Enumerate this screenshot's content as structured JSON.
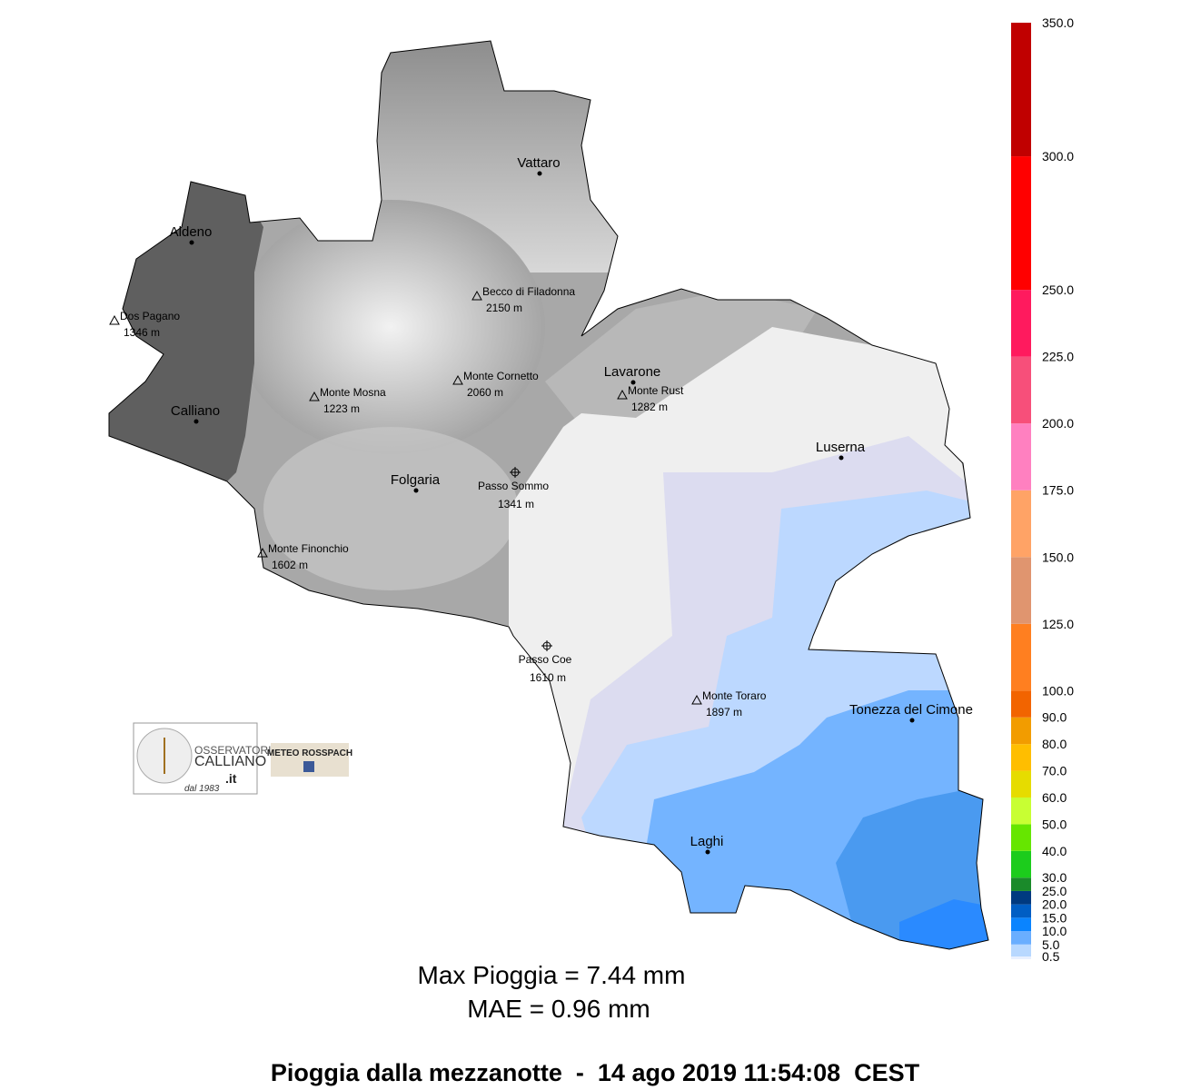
{
  "places": [
    {
      "name": "Vattaro",
      "kind": "town"
    },
    {
      "name": "Aldeno",
      "kind": "town"
    },
    {
      "name": "Calliano",
      "kind": "town"
    },
    {
      "name": "Folgaria",
      "kind": "town"
    },
    {
      "name": "Lavarone",
      "kind": "town"
    },
    {
      "name": "Luserna",
      "kind": "town"
    },
    {
      "name": "Tonezza del Cimone",
      "kind": "town"
    },
    {
      "name": "Laghi",
      "kind": "town"
    },
    {
      "name": "Becco di Filadonna",
      "elevation": "2150 m",
      "kind": "peak"
    },
    {
      "name": "Dos Pagano",
      "elevation": "1346 m",
      "kind": "peak"
    },
    {
      "name": "Monte Cornetto",
      "elevation": "2060 m",
      "kind": "peak"
    },
    {
      "name": "Monte Mosna",
      "elevation": "1223 m",
      "kind": "peak"
    },
    {
      "name": "Monte Rust",
      "elevation": "1282 m",
      "kind": "peak"
    },
    {
      "name": "Monte Finonchio",
      "elevation": "1602 m",
      "kind": "peak"
    },
    {
      "name": "Monte Toraro",
      "elevation": "1897 m",
      "kind": "peak"
    },
    {
      "name": "Passo Sommo",
      "elevation": "1341 m",
      "kind": "pass"
    },
    {
      "name": "Passo Coe",
      "elevation": "1610 m",
      "kind": "pass"
    }
  ],
  "legend": {
    "ticks": [
      {
        "value": 0.5,
        "label": "0.5"
      },
      {
        "value": 5,
        "label": "5.0"
      },
      {
        "value": 10,
        "label": "10.0"
      },
      {
        "value": 15,
        "label": "15.0"
      },
      {
        "value": 20,
        "label": "20.0"
      },
      {
        "value": 25,
        "label": "25.0"
      },
      {
        "value": 30,
        "label": "30.0"
      },
      {
        "value": 40,
        "label": "40.0"
      },
      {
        "value": 50,
        "label": "50.0"
      },
      {
        "value": 60,
        "label": "60.0"
      },
      {
        "value": 70,
        "label": "70.0"
      },
      {
        "value": 80,
        "label": "80.0"
      },
      {
        "value": 90,
        "label": "90.0"
      },
      {
        "value": 100,
        "label": "100.0"
      },
      {
        "value": 125,
        "label": "125.0"
      },
      {
        "value": 150,
        "label": "150.0"
      },
      {
        "value": 175,
        "label": "175.0"
      },
      {
        "value": 200,
        "label": "200.0"
      },
      {
        "value": 225,
        "label": "225.0"
      },
      {
        "value": 250,
        "label": "250.0"
      },
      {
        "value": 300,
        "label": "300.0"
      },
      {
        "value": 350,
        "label": "350.0"
      }
    ],
    "colors": [
      "#e8f0ff",
      "#b8d8ff",
      "#6aaeff",
      "#0a84ff",
      "#005ec4",
      "#003a80",
      "#1a8a2a",
      "#1ccc1c",
      "#66e600",
      "#c8ff33",
      "#e6dc00",
      "#ffbe00",
      "#f29c00",
      "#f26400",
      "#ff7f20",
      "#e0956f",
      "#ffa366",
      "#ff80c0",
      "#f74f7a",
      "#ff1a5e",
      "#ff0000",
      "#c00000"
    ]
  },
  "logos": {
    "observatory": {
      "line1": "OSSERVATORIO",
      "line2": "CALLIANO",
      "suffix": ".it",
      "since": "dal 1983"
    },
    "partner": "METEO ROSSPACH"
  },
  "stats": [
    "Max Pioggia = 7.44 mm",
    "MAE = 0.96 mm"
  ],
  "title": "Pioggia dalla mezzanotte  -  14 ago 2019 11:54:08  CEST"
}
